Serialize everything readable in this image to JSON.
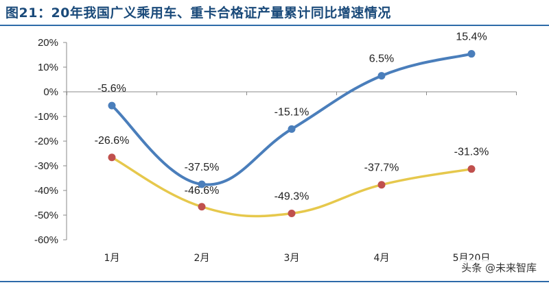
{
  "header": {
    "title": "图21：20年我国广义乘用车、重卡合格证产量累计同比增速情况"
  },
  "watermark": "头条 @未来智库",
  "colors": {
    "series_1": "#4a7ebb",
    "series_2": "#e6c84c",
    "marker_2": "#c0504d",
    "title": "#1a4a7a",
    "rule": "#2d6aa8"
  },
  "chart_data": {
    "type": "line",
    "title": "",
    "xlabel": "",
    "ylabel": "",
    "categories": [
      "1月",
      "2月",
      "3月",
      "4月",
      "5月20日"
    ],
    "ylim": [
      -60,
      20
    ],
    "yticks": [
      20,
      10,
      0,
      -10,
      -20,
      -30,
      -40,
      -50,
      -60
    ],
    "ytick_labels": [
      "20%",
      "10%",
      "0%",
      "-10%",
      "-20%",
      "-30%",
      "-40%",
      "-50%",
      "-60%"
    ],
    "grid": false,
    "series": [
      {
        "values": [
          -5.6,
          -37.5,
          -15.1,
          6.5,
          15.4
        ],
        "labels": [
          "-5.6%",
          "-37.5%",
          "-15.1%",
          "6.5%",
          "15.4%"
        ]
      },
      {
        "values": [
          -26.6,
          -46.6,
          -49.3,
          -37.7,
          -31.3
        ],
        "labels": [
          "-26.6%",
          "-46.6%",
          "-49.3%",
          "-37.7%",
          "-31.3%"
        ]
      }
    ]
  }
}
